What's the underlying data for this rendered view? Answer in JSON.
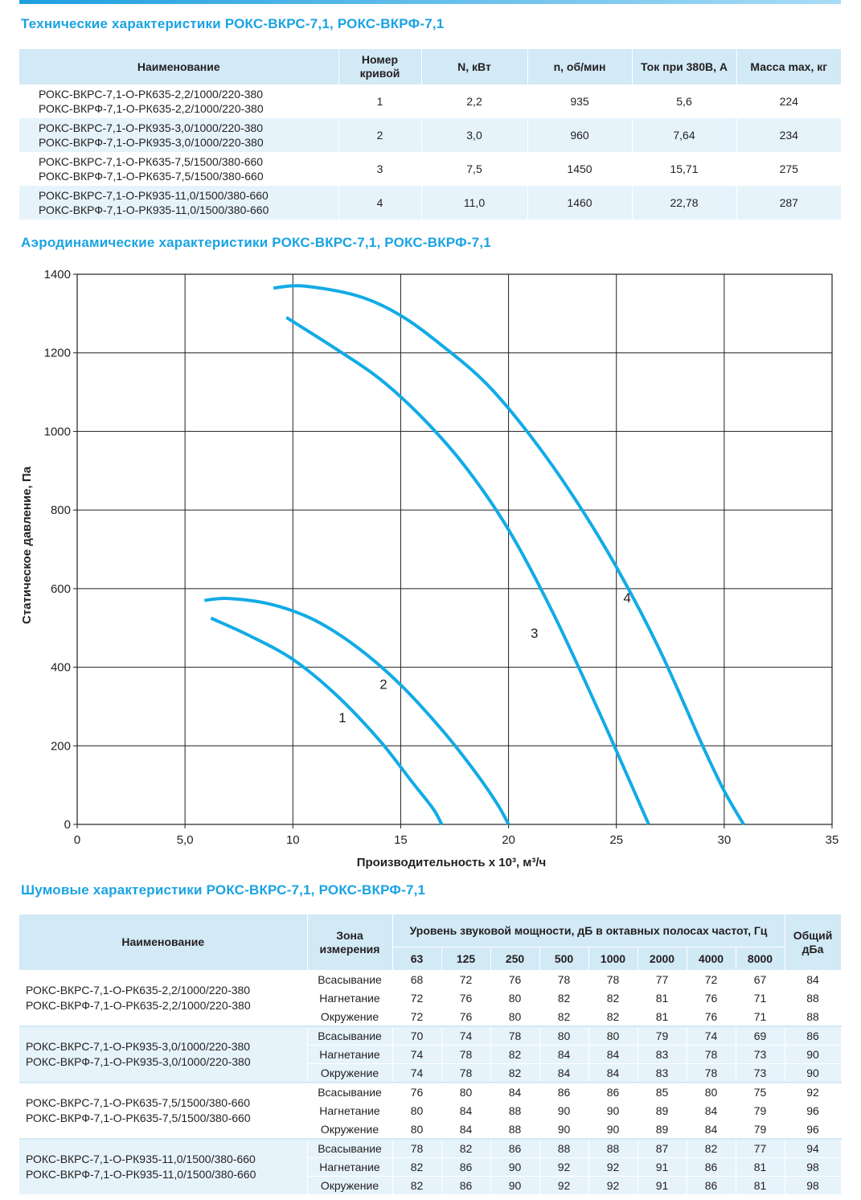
{
  "tech_title": "Технические характеристики РОКС-ВКРС-7,1, РОКС-ВКРФ-7,1",
  "tech_table": {
    "headers": [
      "Наименование",
      "Номер кривой",
      "N, кВт",
      "n, об/мин",
      "Ток при 380В, А",
      "Масса max, кг"
    ],
    "rows": [
      {
        "name1": "РОКС-ВКРС-7,1-О-РК635-2,2/1000/220-380",
        "name2": "РОКС-ВКРФ-7,1-О-РК635-2,2/1000/220-380",
        "curve": "1",
        "power": "2,2",
        "rpm": "935",
        "current": "5,6",
        "mass": "224"
      },
      {
        "name1": "РОКС-ВКРС-7,1-О-РК935-3,0/1000/220-380",
        "name2": "РОКС-ВКРФ-7,1-О-РК935-3,0/1000/220-380",
        "curve": "2",
        "power": "3,0",
        "rpm": "960",
        "current": "7,64",
        "mass": "234"
      },
      {
        "name1": "РОКС-ВКРС-7,1-О-РК635-7,5/1500/380-660",
        "name2": "РОКС-ВКРФ-7,1-О-РК635-7,5/1500/380-660",
        "curve": "3",
        "power": "7,5",
        "rpm": "1450",
        "current": "15,71",
        "mass": "275"
      },
      {
        "name1": "РОКС-ВКРС-7,1-О-РК935-11,0/1500/380-660",
        "name2": "РОКС-ВКРФ-7,1-О-РК935-11,0/1500/380-660",
        "curve": "4",
        "power": "11,0",
        "rpm": "1460",
        "current": "22,78",
        "mass": "287"
      }
    ]
  },
  "aero_title": "Аэродинамические характеристики РОКС-ВКРС-7,1, РОКС-ВКРФ-7,1",
  "chart_data": {
    "type": "line",
    "xlabel": "Производительность х 10³, м³/ч",
    "ylabel": "Статическое давление, Па",
    "xlim": [
      0,
      35
    ],
    "ylim": [
      0,
      1400
    ],
    "xticks": [
      0,
      5,
      10,
      15,
      20,
      25,
      30,
      35
    ],
    "xtick_labels": [
      "0",
      "5,0",
      "10",
      "15",
      "20",
      "25",
      "30",
      "35"
    ],
    "yticks": [
      0,
      200,
      400,
      600,
      800,
      1000,
      1200,
      1400
    ],
    "ytick_labels": [
      "0",
      "200",
      "400",
      "600",
      "800",
      "1000",
      "1200",
      "1400"
    ],
    "grid": true,
    "series": [
      {
        "name": "1",
        "label_at": [
          12.3,
          260
        ],
        "points": [
          [
            6.2,
            525
          ],
          [
            8,
            480
          ],
          [
            10,
            420
          ],
          [
            12,
            330
          ],
          [
            14,
            215
          ],
          [
            15.5,
            110
          ],
          [
            16.5,
            40
          ],
          [
            16.9,
            0
          ]
        ]
      },
      {
        "name": "2",
        "label_at": [
          14.2,
          345
        ],
        "points": [
          [
            5.9,
            570
          ],
          [
            7,
            575
          ],
          [
            9,
            560
          ],
          [
            11,
            520
          ],
          [
            13,
            450
          ],
          [
            15,
            355
          ],
          [
            17,
            235
          ],
          [
            18.5,
            130
          ],
          [
            19.5,
            50
          ],
          [
            20,
            0
          ]
        ]
      },
      {
        "name": "3",
        "label_at": [
          21.2,
          475
        ],
        "points": [
          [
            9.7,
            1290
          ],
          [
            12,
            1210
          ],
          [
            14,
            1135
          ],
          [
            16,
            1035
          ],
          [
            18,
            910
          ],
          [
            20,
            750
          ],
          [
            22,
            545
          ],
          [
            24,
            310
          ],
          [
            25.5,
            125
          ],
          [
            26.5,
            0
          ]
        ]
      },
      {
        "name": "4",
        "label_at": [
          25.5,
          565
        ],
        "points": [
          [
            9.1,
            1365
          ],
          [
            10.5,
            1370
          ],
          [
            13,
            1345
          ],
          [
            15,
            1295
          ],
          [
            17,
            1215
          ],
          [
            19,
            1120
          ],
          [
            21,
            990
          ],
          [
            23,
            835
          ],
          [
            25,
            655
          ],
          [
            27,
            445
          ],
          [
            29,
            200
          ],
          [
            30,
            85
          ],
          [
            30.9,
            0
          ]
        ]
      }
    ],
    "color": "#12abe6"
  },
  "noise_title": "Шумовые характеристики РОКС-ВКРС-7,1, РОКС-ВКРФ-7,1",
  "noise_table": {
    "h_name": "Наименование",
    "h_zone": "Зона измерения",
    "h_level": "Уровень звуковой мощности, дБ в октавных полосах частот, Гц",
    "h_total": "Общий дБа",
    "freqs": [
      "63",
      "125",
      "250",
      "500",
      "1000",
      "2000",
      "4000",
      "8000"
    ],
    "groups": [
      {
        "name1": "РОКС-ВКРС-7,1-О-РК635-2,2/1000/220-380",
        "name2": "РОКС-ВКРФ-7,1-О-РК635-2,2/1000/220-380",
        "rows": [
          {
            "zone": "Всасывание",
            "v": [
              "68",
              "72",
              "76",
              "78",
              "78",
              "77",
              "72",
              "67"
            ],
            "total": "84"
          },
          {
            "zone": "Нагнетание",
            "v": [
              "72",
              "76",
              "80",
              "82",
              "82",
              "81",
              "76",
              "71"
            ],
            "total": "88"
          },
          {
            "zone": "Окружение",
            "v": [
              "72",
              "76",
              "80",
              "82",
              "82",
              "81",
              "76",
              "71"
            ],
            "total": "88"
          }
        ]
      },
      {
        "name1": "РОКС-ВКРС-7,1-О-РК935-3,0/1000/220-380",
        "name2": "РОКС-ВКРФ-7,1-О-РК935-3,0/1000/220-380",
        "rows": [
          {
            "zone": "Всасывание",
            "v": [
              "70",
              "74",
              "78",
              "80",
              "80",
              "79",
              "74",
              "69"
            ],
            "total": "86"
          },
          {
            "zone": "Нагнетание",
            "v": [
              "74",
              "78",
              "82",
              "84",
              "84",
              "83",
              "78",
              "73"
            ],
            "total": "90"
          },
          {
            "zone": "Окружение",
            "v": [
              "74",
              "78",
              "82",
              "84",
              "84",
              "83",
              "78",
              "73"
            ],
            "total": "90"
          }
        ]
      },
      {
        "name1": "РОКС-ВКРС-7,1-О-РК635-7,5/1500/380-660",
        "name2": "РОКС-ВКРФ-7,1-О-РК635-7,5/1500/380-660",
        "rows": [
          {
            "zone": "Всасывание",
            "v": [
              "76",
              "80",
              "84",
              "86",
              "86",
              "85",
              "80",
              "75"
            ],
            "total": "92"
          },
          {
            "zone": "Нагнетание",
            "v": [
              "80",
              "84",
              "88",
              "90",
              "90",
              "89",
              "84",
              "79"
            ],
            "total": "96"
          },
          {
            "zone": "Окружение",
            "v": [
              "80",
              "84",
              "88",
              "90",
              "90",
              "89",
              "84",
              "79"
            ],
            "total": "96"
          }
        ]
      },
      {
        "name1": "РОКС-ВКРС-7,1-О-РК935-11,0/1500/380-660",
        "name2": "РОКС-ВКРФ-7,1-О-РК935-11,0/1500/380-660",
        "rows": [
          {
            "zone": "Всасывание",
            "v": [
              "78",
              "82",
              "86",
              "88",
              "88",
              "87",
              "82",
              "77"
            ],
            "total": "94"
          },
          {
            "zone": "Нагнетание",
            "v": [
              "82",
              "86",
              "90",
              "92",
              "92",
              "91",
              "86",
              "81"
            ],
            "total": "98"
          },
          {
            "zone": "Окружение",
            "v": [
              "82",
              "86",
              "90",
              "92",
              "92",
              "91",
              "86",
              "81"
            ],
            "total": "98"
          }
        ]
      }
    ]
  }
}
